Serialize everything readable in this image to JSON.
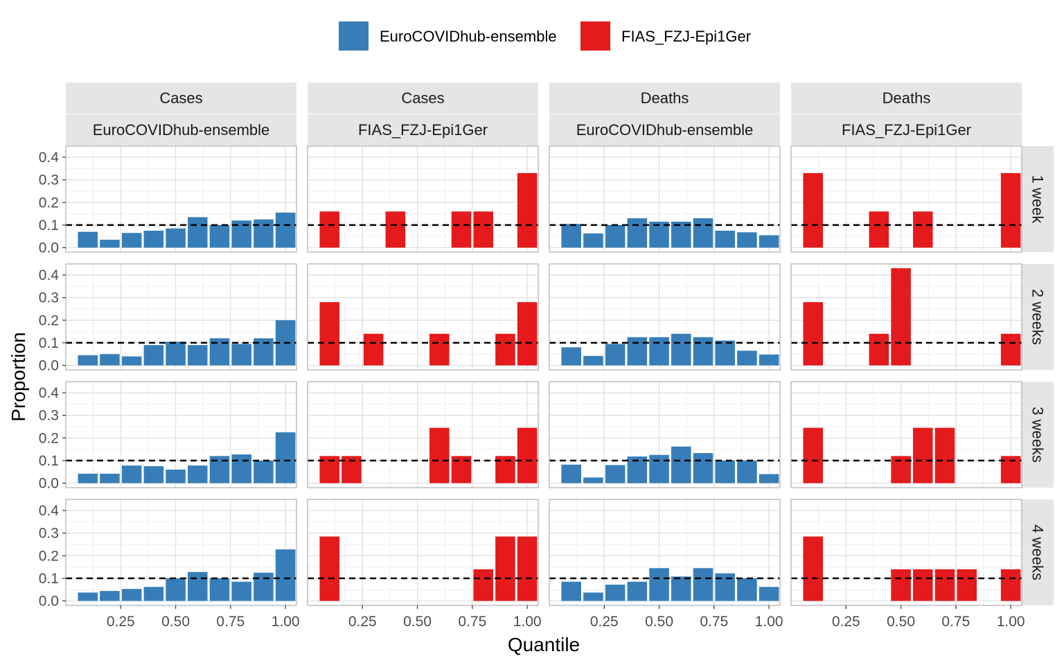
{
  "colors": {
    "EuroCOVIDhub-ensemble": "#377eb8",
    "FIAS_FZJ-Epi1Ger": "#e41a1c",
    "strip_bg": "#e5e5e5",
    "grid_major": "#dedede",
    "grid_minor": "#efefef",
    "panel_border": "#b3b3b3",
    "reference_line": "#000000"
  },
  "chart_data": {
    "type": "bar",
    "legend": {
      "position": "top",
      "entries": [
        "EuroCOVIDhub-ensemble",
        "FIAS_FZJ-Epi1Ger"
      ]
    },
    "xlabel": "Quantile",
    "ylabel": "Proportion",
    "xlim": [
      0,
      1.05
    ],
    "ylim": [
      0,
      0.45
    ],
    "x_ticks": [
      "0.25",
      "0.50",
      "0.75",
      "1.00"
    ],
    "y_ticks": [
      "0.0",
      "0.1",
      "0.2",
      "0.3",
      "0.4"
    ],
    "reference_line": {
      "y": 0.1,
      "style": "dashed"
    },
    "columns": [
      {
        "target": "Cases",
        "model": "EuroCOVIDhub-ensemble"
      },
      {
        "target": "Cases",
        "model": "FIAS_FZJ-Epi1Ger"
      },
      {
        "target": "Deaths",
        "model": "EuroCOVIDhub-ensemble"
      },
      {
        "target": "Deaths",
        "model": "FIAS_FZJ-Epi1Ger"
      }
    ],
    "rows": [
      "1 week",
      "2 weeks",
      "3 weeks",
      "4 weeks"
    ],
    "x": [
      0.1,
      0.2,
      0.3,
      0.4,
      0.5,
      0.6,
      0.7,
      0.8,
      0.9,
      1.0
    ],
    "grid": true,
    "panels": [
      [
        [
          0.07,
          0.035,
          0.065,
          0.075,
          0.085,
          0.135,
          0.1,
          0.12,
          0.125,
          0.155
        ],
        [
          0.16,
          0,
          0,
          0.16,
          0,
          0,
          0.16,
          0.16,
          0,
          0.33
        ],
        [
          0.105,
          0.063,
          0.1,
          0.13,
          0.115,
          0.115,
          0.13,
          0.075,
          0.068,
          0.055
        ],
        [
          0.33,
          0,
          0,
          0.16,
          0,
          0.16,
          0,
          0,
          0,
          0.33
        ]
      ],
      [
        [
          0.045,
          0.05,
          0.04,
          0.09,
          0.105,
          0.09,
          0.12,
          0.095,
          0.12,
          0.2
        ],
        [
          0.28,
          0,
          0.14,
          0,
          0,
          0.14,
          0,
          0,
          0.14,
          0.28
        ],
        [
          0.08,
          0.042,
          0.095,
          0.125,
          0.125,
          0.14,
          0.125,
          0.11,
          0.065,
          0.048
        ],
        [
          0.28,
          0,
          0,
          0.14,
          0.43,
          0,
          0,
          0,
          0,
          0.14
        ]
      ],
      [
        [
          0.042,
          0.042,
          0.078,
          0.075,
          0.06,
          0.078,
          0.12,
          0.127,
          0.1,
          0.225
        ],
        [
          0.12,
          0.12,
          0,
          0,
          0,
          0.245,
          0.12,
          0,
          0.12,
          0.245
        ],
        [
          0.082,
          0.025,
          0.08,
          0.118,
          0.125,
          0.162,
          0.133,
          0.1,
          0.1,
          0.04
        ],
        [
          0.245,
          0,
          0,
          0,
          0.12,
          0.245,
          0.245,
          0,
          0,
          0.12
        ]
      ],
      [
        [
          0.037,
          0.044,
          0.053,
          0.062,
          0.1,
          0.128,
          0.1,
          0.085,
          0.125,
          0.228
        ],
        [
          0.285,
          0,
          0,
          0,
          0,
          0,
          0,
          0.14,
          0.285,
          0.285
        ],
        [
          0.085,
          0.037,
          0.072,
          0.085,
          0.145,
          0.108,
          0.145,
          0.122,
          0.1,
          0.062
        ],
        [
          0.285,
          0,
          0,
          0,
          0.14,
          0.14,
          0.14,
          0.14,
          0,
          0.14
        ]
      ]
    ]
  }
}
